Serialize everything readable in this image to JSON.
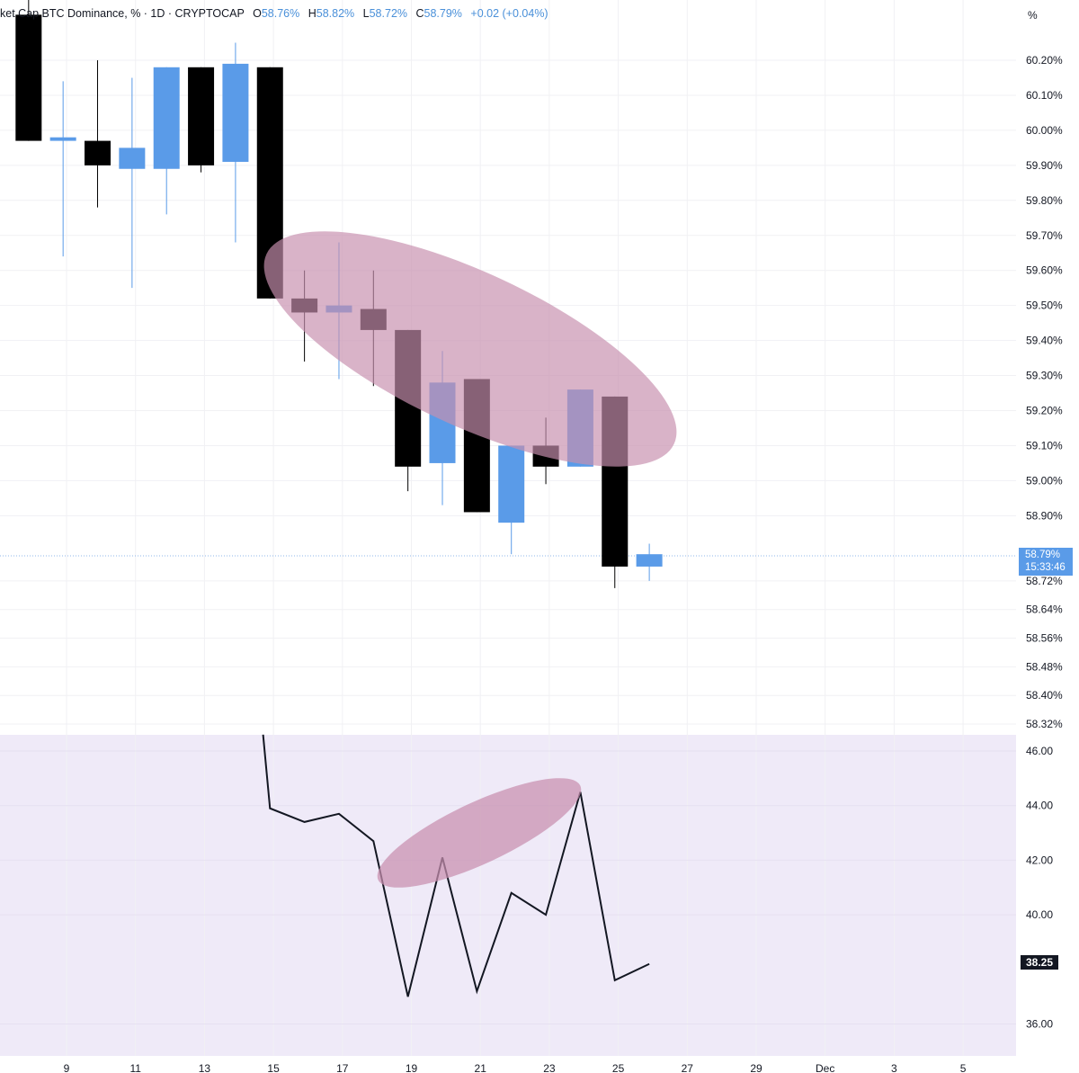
{
  "header": {
    "title": "ket Cap BTC Dominance, % · 1D · CRYPTOCAP",
    "open_label": "O",
    "open": "58.76%",
    "high_label": "H",
    "high": "58.82%",
    "low_label": "L",
    "low": "58.72%",
    "close_label": "C",
    "close": "58.79%",
    "change": "+0.02 (+0.04%)"
  },
  "scale_unit": "%",
  "price_badge": {
    "value": "58.79%",
    "countdown": "15:33:46"
  },
  "rsi_badge": "38.25",
  "colors": {
    "up": "#5a9be8",
    "down": "#000000",
    "highlight": "#d3a6bd",
    "rsi_bg": "#efeaf8",
    "rsi_line": "#131722"
  },
  "chart_data": [
    {
      "type": "candlestick",
      "title": "ket Cap BTC Dominance, % · 1D · CRYPTOCAP",
      "x_tick_labels": [
        "9",
        "11",
        "13",
        "15",
        "17",
        "19",
        "21",
        "23",
        "25",
        "27",
        "29",
        "Dec",
        "3",
        "5"
      ],
      "y_tick_labels": [
        "60.20%",
        "60.10%",
        "60.00%",
        "59.90%",
        "59.80%",
        "59.70%",
        "59.60%",
        "59.50%",
        "59.40%",
        "59.30%",
        "59.20%",
        "59.10%",
        "59.00%",
        "58.90%",
        "58.72%",
        "58.64%",
        "58.56%",
        "58.48%",
        "58.40%",
        "58.32%"
      ],
      "last_price": 58.79,
      "candles": [
        {
          "x": 7.9,
          "o": 60.33,
          "h": 60.4,
          "l": 59.97,
          "c": 59.97
        },
        {
          "x": 8.9,
          "o": 59.97,
          "h": 60.14,
          "l": 59.64,
          "c": 59.98
        },
        {
          "x": 9.9,
          "o": 59.97,
          "h": 60.2,
          "l": 59.78,
          "c": 59.9
        },
        {
          "x": 10.9,
          "o": 59.89,
          "h": 60.15,
          "l": 59.55,
          "c": 59.95
        },
        {
          "x": 11.9,
          "o": 59.89,
          "h": 60.18,
          "l": 59.76,
          "c": 60.18
        },
        {
          "x": 12.9,
          "o": 60.18,
          "h": 60.18,
          "l": 59.88,
          "c": 59.9
        },
        {
          "x": 13.9,
          "o": 59.91,
          "h": 60.25,
          "l": 59.68,
          "c": 60.19
        },
        {
          "x": 14.9,
          "o": 60.18,
          "h": 60.18,
          "l": 59.52,
          "c": 59.52
        },
        {
          "x": 15.9,
          "o": 59.52,
          "h": 59.6,
          "l": 59.34,
          "c": 59.48
        },
        {
          "x": 16.9,
          "o": 59.48,
          "h": 59.68,
          "l": 59.29,
          "c": 59.5
        },
        {
          "x": 17.9,
          "o": 59.49,
          "h": 59.6,
          "l": 59.27,
          "c": 59.43
        },
        {
          "x": 18.9,
          "o": 59.43,
          "h": 59.43,
          "l": 58.97,
          "c": 59.04
        },
        {
          "x": 19.9,
          "o": 59.05,
          "h": 59.37,
          "l": 58.93,
          "c": 59.28
        },
        {
          "x": 20.9,
          "o": 59.29,
          "h": 59.29,
          "l": 58.91,
          "c": 58.91
        },
        {
          "x": 21.9,
          "o": 58.88,
          "h": 59.1,
          "l": 58.79,
          "c": 59.1
        },
        {
          "x": 22.9,
          "o": 59.1,
          "h": 59.18,
          "l": 58.99,
          "c": 59.04
        },
        {
          "x": 23.9,
          "o": 59.04,
          "h": 59.26,
          "l": 59.04,
          "c": 59.26
        },
        {
          "x": 24.9,
          "o": 59.24,
          "h": 59.24,
          "l": 58.7,
          "c": 58.76
        },
        {
          "x": 25.9,
          "o": 58.76,
          "h": 58.82,
          "l": 58.72,
          "c": 58.79
        }
      ]
    },
    {
      "type": "line",
      "x_tick_labels": [
        "9",
        "11",
        "13",
        "15",
        "17",
        "19",
        "21",
        "23",
        "25",
        "27",
        "29",
        "Dec",
        "3",
        "5"
      ],
      "y_tick_labels": [
        "46.00",
        "44.00",
        "42.00",
        "40.00",
        "36.00"
      ],
      "last_value": 38.25,
      "series": [
        {
          "values": [
            {
              "x": 14.7,
              "y": 46.6
            },
            {
              "x": 14.9,
              "y": 43.9
            },
            {
              "x": 15.9,
              "y": 43.4
            },
            {
              "x": 16.9,
              "y": 43.7
            },
            {
              "x": 17.9,
              "y": 42.7
            },
            {
              "x": 18.9,
              "y": 37.0
            },
            {
              "x": 19.9,
              "y": 42.1
            },
            {
              "x": 20.9,
              "y": 37.2
            },
            {
              "x": 21.9,
              "y": 40.8
            },
            {
              "x": 22.9,
              "y": 40.0
            },
            {
              "x": 23.9,
              "y": 44.5
            },
            {
              "x": 24.9,
              "y": 37.6
            },
            {
              "x": 25.9,
              "y": 38.2
            }
          ]
        }
      ]
    }
  ]
}
